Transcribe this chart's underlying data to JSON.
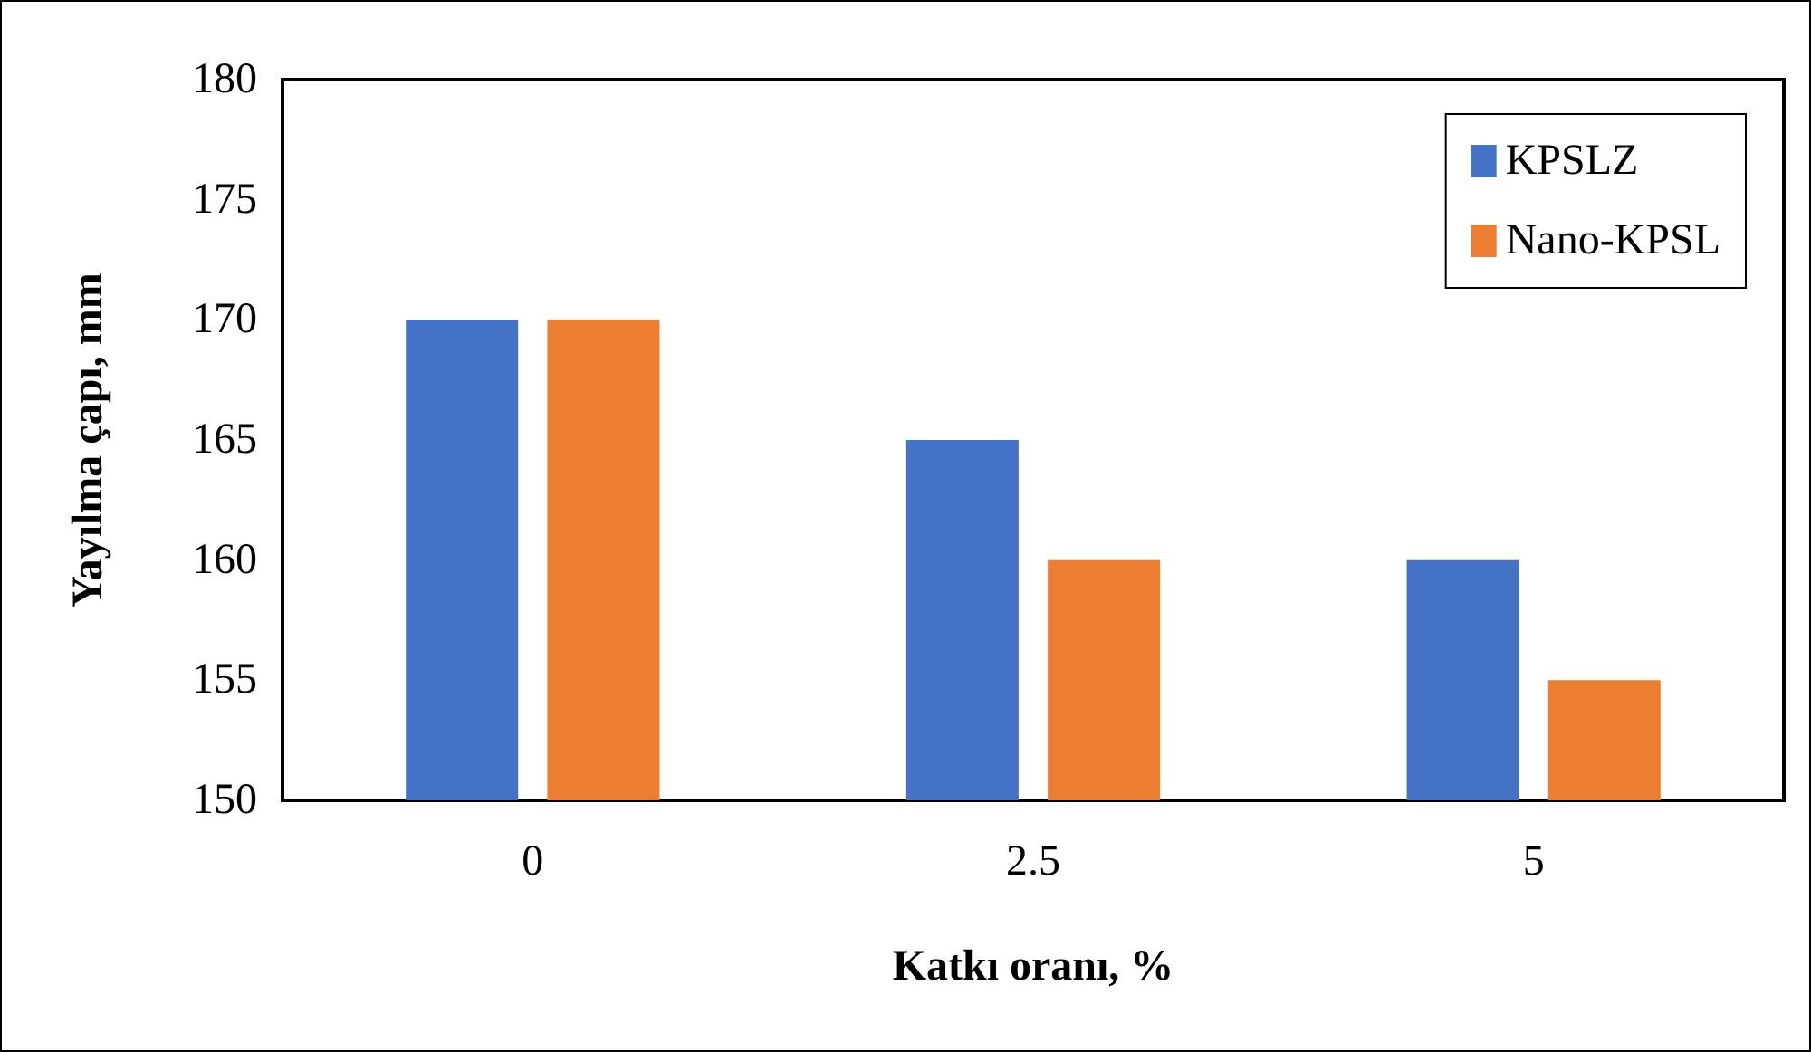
{
  "chart_data": {
    "type": "bar",
    "xlabel": "Katkı oranı, %",
    "ylabel": "Yayılma çapı, mm",
    "categories": [
      "0",
      "2.5",
      "5"
    ],
    "series": [
      {
        "name": "KPSLZ",
        "color": "#4472c4",
        "values": [
          170,
          165,
          160
        ]
      },
      {
        "name": "Nano-KPSL",
        "color": "#ed7d31",
        "values": [
          170,
          160,
          155
        ]
      }
    ],
    "ylim": [
      150,
      180
    ],
    "yticks": [
      150,
      155,
      160,
      165,
      170,
      175,
      180
    ],
    "legend": "top right"
  }
}
